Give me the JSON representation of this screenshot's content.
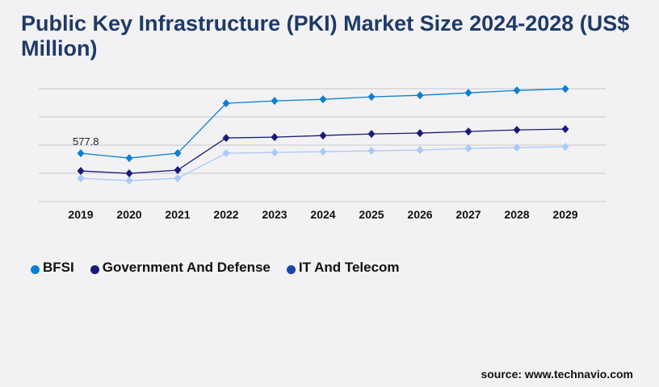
{
  "title": "Public Key Infrastructure (PKI) Market Size 2024-2028 (US$ Million)",
  "source": "source: www.technavio.com",
  "chart_data": {
    "type": "line",
    "title": "Public Key Infrastructure (PKI) Market Size 2024-2028 (US$ Million)",
    "categories": [
      "2019",
      "2020",
      "2021",
      "2022",
      "2023",
      "2024",
      "2025",
      "2026",
      "2027",
      "2028",
      "2029"
    ],
    "ylim": [
      0,
      1350
    ],
    "grid": true,
    "legend_position": "bottom-left",
    "series": [
      {
        "name": "BFSI",
        "color": "#0a7fd4",
        "legend_color": "#0a7fd4",
        "values": [
          577.8,
          520,
          578,
          1175,
          1204,
          1223,
          1252,
          1271,
          1300,
          1329,
          1348
        ]
      },
      {
        "name": "Government And Defense",
        "color": "#1a1a7a",
        "legend_color": "#1a1a7a",
        "values": [
          366,
          337,
          376,
          761,
          770,
          790,
          809,
          819,
          838,
          857,
          867
        ]
      },
      {
        "name": "IT And Telecom",
        "color": "#a9c9f7",
        "legend_color": "#1a44a8",
        "values": [
          279,
          250,
          279,
          578,
          587,
          597,
          607,
          616,
          636,
          645,
          655
        ]
      }
    ],
    "annotations": [
      {
        "series": "BFSI",
        "category": "2019",
        "text": "577.8"
      }
    ]
  }
}
